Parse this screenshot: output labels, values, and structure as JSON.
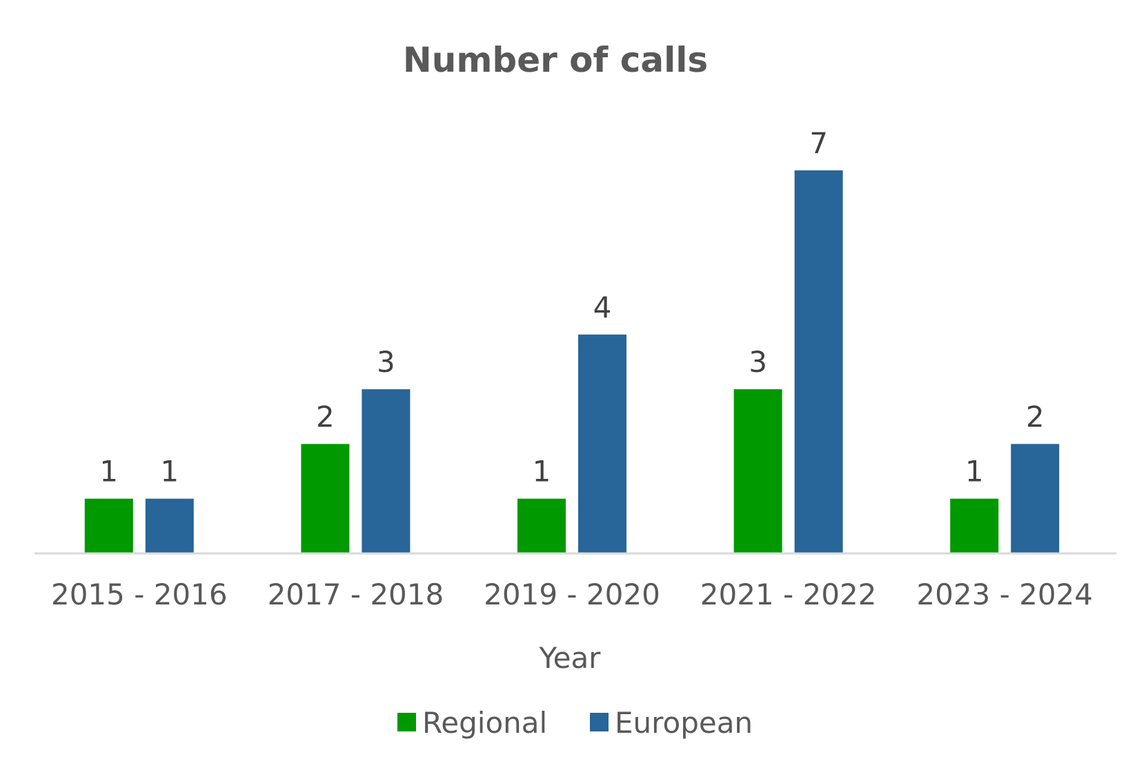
{
  "chart_data": {
    "type": "bar",
    "title": "Number of calls",
    "xlabel": "Year",
    "ylabel": "",
    "categories": [
      "2015 - 2016",
      "2017 - 2018",
      "2019 - 2020",
      "2021 - 2022",
      "2023 - 2024"
    ],
    "series": [
      {
        "name": "Regional",
        "values": [
          1,
          2,
          1,
          3,
          1
        ],
        "color": "#009900"
      },
      {
        "name": "European",
        "values": [
          1,
          3,
          4,
          7,
          2
        ],
        "color": "#286598"
      }
    ],
    "ylim": [
      0,
      7
    ],
    "grid": false,
    "legend_position": "bottom",
    "data_labels": true
  }
}
